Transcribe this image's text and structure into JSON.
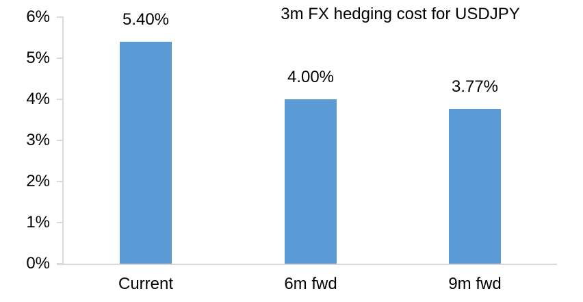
{
  "chart_data": {
    "type": "bar",
    "title": "3m FX hedging cost for USDJPY",
    "categories": [
      "Current",
      "6m fwd",
      "9m fwd"
    ],
    "values": [
      5.4,
      4.0,
      3.77
    ],
    "data_labels": [
      "5.40%",
      "4.00%",
      "3.77%"
    ],
    "y_ticks": [
      "0%",
      "1%",
      "2%",
      "3%",
      "4%",
      "5%",
      "6%"
    ],
    "ylim": [
      0,
      6
    ],
    "xlabel": "",
    "ylabel": "",
    "grid": false,
    "legend": "none",
    "bar_color": "#5B9BD5",
    "axis_color": "#D9D9D9",
    "text_color": "#000000",
    "background_color": "#FFFFFF"
  }
}
